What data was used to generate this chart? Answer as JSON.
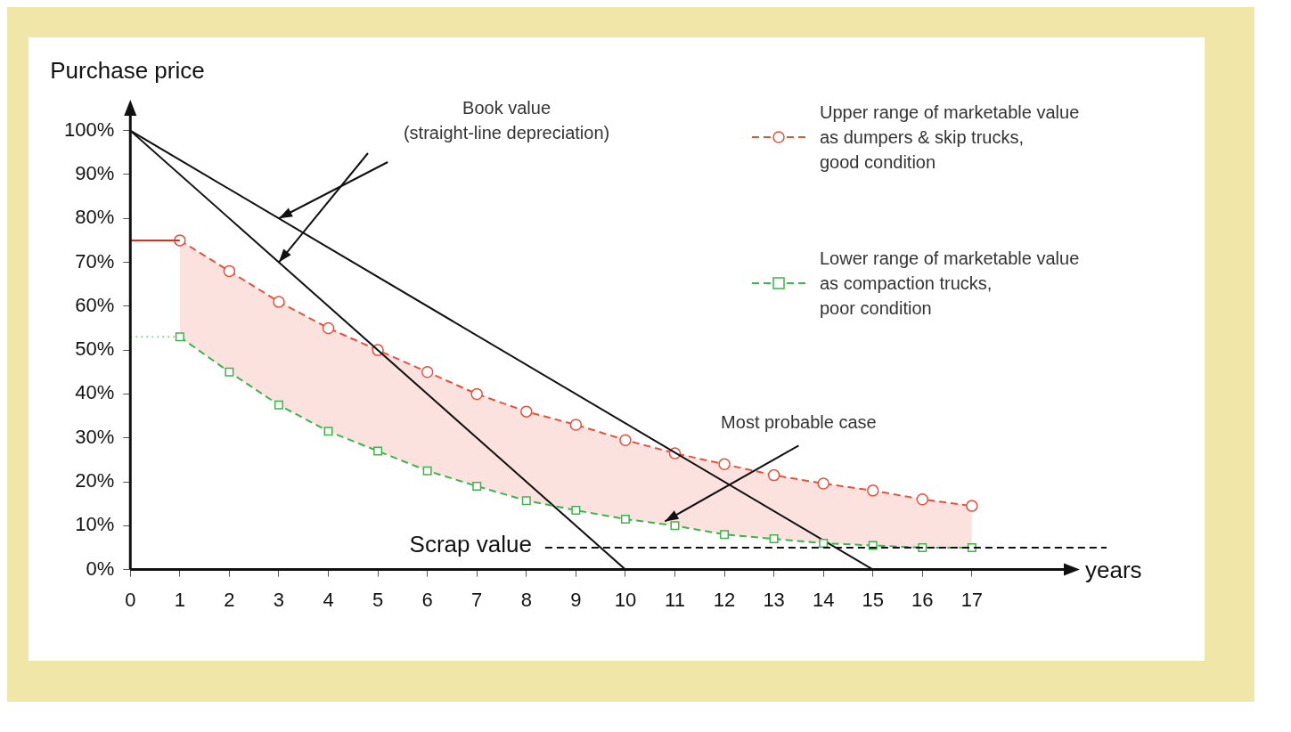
{
  "chart_data": {
    "type": "line",
    "ylabel": "Purchase price",
    "xlabel": "years",
    "xlim": [
      0,
      19
    ],
    "xticks": [
      0,
      1,
      2,
      3,
      4,
      5,
      6,
      7,
      8,
      9,
      10,
      11,
      12,
      13,
      14,
      15,
      16,
      17
    ],
    "ylim": [
      0,
      105
    ],
    "yticks": [
      {
        "value": 0,
        "label": "0%"
      },
      {
        "value": 10,
        "label": "10%"
      },
      {
        "value": 20,
        "label": "20%"
      },
      {
        "value": 30,
        "label": "30%"
      },
      {
        "value": 40,
        "label": "40%"
      },
      {
        "value": 50,
        "label": "50%"
      },
      {
        "value": 60,
        "label": "60%"
      },
      {
        "value": 70,
        "label": "70%"
      },
      {
        "value": 80,
        "label": "80%"
      },
      {
        "value": 90,
        "label": "90%"
      },
      {
        "value": 100,
        "label": "100%"
      }
    ],
    "grid": false,
    "legend": "top right",
    "series": [
      {
        "type": "area",
        "name": "Upper range of marketable value\nas dumpers & skip trucks,\ngood condition",
        "color": "#e8503a",
        "marker": "circle",
        "line_style": "dashed",
        "x": [
          1,
          2,
          3,
          4,
          5,
          6,
          7,
          8,
          9,
          10,
          11,
          12,
          13,
          14,
          15,
          16,
          17
        ],
        "values": [
          75,
          68,
          61,
          55,
          50,
          45,
          40,
          36,
          33,
          29.5,
          26.5,
          24,
          21.5,
          19.6,
          18,
          16,
          14.5
        ]
      },
      {
        "name": "Lower range of marketable value\nas compaction trucks,\npoor condition",
        "color": "#3cb44a",
        "marker": "square",
        "line_style": "dashed",
        "x": [
          1,
          2,
          3,
          4,
          5,
          6,
          7,
          8,
          9,
          10,
          11,
          12,
          13,
          14,
          15,
          16,
          17
        ],
        "values": [
          53,
          45,
          37.5,
          31.5,
          27,
          22.5,
          19,
          15.7,
          13.5,
          11.5,
          10,
          8,
          7,
          6,
          5.5,
          5,
          5
        ]
      },
      {
        "color": "#d83020",
        "marker": "none",
        "line_style": "solid",
        "x": [
          0,
          1
        ],
        "values": [
          75,
          75
        ]
      },
      {
        "color": "#a0d0a0",
        "marker": "none",
        "line_style": "dotted",
        "x": [
          0,
          1
        ],
        "values": [
          53,
          53
        ]
      },
      {
        "color": "#111111",
        "marker": "none",
        "line_style": "solid",
        "x": [
          0,
          10
        ],
        "values": [
          100,
          0
        ]
      },
      {
        "color": "#111111",
        "marker": "none",
        "line_style": "solid",
        "x": [
          0,
          15
        ],
        "values": [
          100,
          0
        ]
      }
    ],
    "ref_lines": [
      {
        "axis": "y",
        "value": 5,
        "label": "Scrap value",
        "color": "#111111",
        "line_style": "dashed"
      }
    ],
    "annotations": [
      "Book value\n(straight-line depreciation)",
      {
        "text": "Most probable case",
        "x": 10.8,
        "y": 11
      }
    ]
  }
}
